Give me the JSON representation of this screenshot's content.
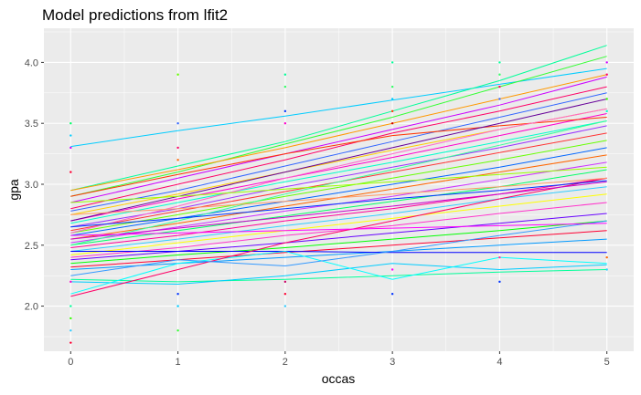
{
  "chart_data": {
    "type": "line",
    "title": "Model predictions from lfit2",
    "xlabel": "occas",
    "ylabel": "gpa",
    "xlim": [
      -0.25,
      5.25
    ],
    "ylim": [
      1.63,
      4.28
    ],
    "x_ticks": [
      0,
      1,
      2,
      3,
      4,
      5
    ],
    "x_tick_labels": [
      "0",
      "1",
      "2",
      "3",
      "4",
      "5"
    ],
    "y_ticks": [
      2.0,
      2.5,
      3.0,
      3.5,
      4.0
    ],
    "y_tick_labels": [
      "2.0",
      "2.5",
      "3.0",
      "3.5",
      "4.0"
    ],
    "grid": true,
    "legend": "none",
    "x": [
      0,
      1,
      2,
      3,
      4,
      5
    ],
    "series": [
      {
        "values": [
          3.31,
          3.44,
          3.56,
          3.69,
          3.82,
          3.95
        ],
        "color": "#00ccff"
      },
      {
        "values": [
          2.95,
          3.15,
          3.35,
          3.6,
          3.85,
          4.14
        ],
        "color": "#00ff99"
      },
      {
        "values": [
          2.9,
          3.1,
          3.33,
          3.55,
          3.8,
          4.05
        ],
        "color": "#33ff33"
      },
      {
        "values": [
          2.95,
          3.12,
          3.3,
          3.5,
          3.7,
          3.9
        ],
        "color": "#ff9900"
      },
      {
        "values": [
          2.85,
          3.05,
          3.25,
          3.45,
          3.65,
          3.88
        ],
        "color": "#cc00ff"
      },
      {
        "values": [
          2.8,
          3.0,
          3.2,
          3.42,
          3.6,
          3.8
        ],
        "color": "#ff0066"
      },
      {
        "values": [
          2.78,
          2.95,
          3.15,
          3.35,
          3.55,
          3.75
        ],
        "color": "#3366ff"
      },
      {
        "values": [
          2.75,
          2.92,
          3.1,
          3.28,
          3.45,
          3.62
        ],
        "color": "#ffcc00"
      },
      {
        "values": [
          2.7,
          2.88,
          3.05,
          3.22,
          3.4,
          3.58
        ],
        "color": "#ff00cc"
      },
      {
        "values": [
          2.68,
          2.85,
          3.02,
          3.18,
          3.35,
          3.52
        ],
        "color": "#00ffcc"
      },
      {
        "values": [
          2.65,
          2.8,
          2.98,
          3.14,
          3.3,
          3.48
        ],
        "color": "#9933ff"
      },
      {
        "values": [
          2.62,
          2.78,
          2.94,
          3.1,
          3.26,
          3.42
        ],
        "color": "#ff3333"
      },
      {
        "values": [
          2.6,
          2.75,
          2.9,
          3.05,
          3.2,
          3.36
        ],
        "color": "#66ff00"
      },
      {
        "values": [
          2.58,
          2.72,
          2.86,
          3.0,
          3.14,
          3.3
        ],
        "color": "#0066ff"
      },
      {
        "values": [
          2.55,
          2.68,
          2.82,
          2.96,
          3.1,
          3.24
        ],
        "color": "#ff6600"
      },
      {
        "values": [
          2.52,
          2.65,
          2.78,
          2.9,
          3.04,
          3.18
        ],
        "color": "#cc33ff"
      },
      {
        "values": [
          2.5,
          2.62,
          2.74,
          2.86,
          2.98,
          3.12
        ],
        "color": "#00ff66"
      },
      {
        "values": [
          2.48,
          2.58,
          2.7,
          2.8,
          2.92,
          3.05
        ],
        "color": "#ff0099"
      },
      {
        "values": [
          2.45,
          2.55,
          2.66,
          2.76,
          2.88,
          2.98
        ],
        "color": "#33ccff"
      },
      {
        "values": [
          2.42,
          2.52,
          2.62,
          2.72,
          2.82,
          2.92
        ],
        "color": "#ffff00"
      },
      {
        "values": [
          2.4,
          2.48,
          2.58,
          2.66,
          2.76,
          2.85
        ],
        "color": "#ff33cc"
      },
      {
        "values": [
          2.38,
          2.45,
          2.52,
          2.6,
          2.68,
          2.76
        ],
        "color": "#6600ff"
      },
      {
        "values": [
          2.35,
          2.42,
          2.48,
          2.55,
          2.62,
          2.7
        ],
        "color": "#00ff00"
      },
      {
        "values": [
          2.32,
          2.38,
          2.44,
          2.5,
          2.56,
          2.62
        ],
        "color": "#ff0033"
      },
      {
        "values": [
          2.3,
          2.35,
          2.4,
          2.45,
          2.5,
          2.55
        ],
        "color": "#0099ff"
      },
      {
        "values": [
          2.45,
          2.45,
          2.45,
          2.44,
          2.44,
          2.44
        ],
        "color": "#0000ff"
      },
      {
        "values": [
          2.22,
          2.2,
          2.22,
          2.25,
          2.28,
          2.3
        ],
        "color": "#00ff99"
      },
      {
        "values": [
          2.2,
          2.18,
          2.25,
          2.35,
          2.3,
          2.34
        ],
        "color": "#00ccff"
      },
      {
        "values": [
          2.1,
          2.35,
          2.45,
          2.22,
          2.4,
          2.35
        ],
        "color": "#00ffff"
      },
      {
        "values": [
          2.08,
          2.3,
          2.52,
          2.7,
          2.88,
          3.05
        ],
        "color": "#ff0066"
      },
      {
        "values": [
          2.25,
          2.38,
          2.33,
          2.45,
          2.58,
          2.7
        ],
        "color": "#3399ff"
      },
      {
        "values": [
          2.9,
          3.08,
          3.25,
          3.4,
          3.48,
          3.55
        ],
        "color": "#ff3300"
      },
      {
        "values": [
          2.7,
          2.9,
          3.1,
          3.3,
          3.5,
          3.7
        ],
        "color": "#660099"
      },
      {
        "values": [
          2.6,
          2.82,
          3.05,
          3.25,
          3.45,
          3.62
        ],
        "color": "#ff66cc"
      },
      {
        "values": [
          2.5,
          2.7,
          2.92,
          3.12,
          3.32,
          3.52
        ],
        "color": "#33ff99"
      },
      {
        "values": [
          2.55,
          2.64,
          2.73,
          2.82,
          2.92,
          3.02
        ],
        "color": "#cc00cc"
      },
      {
        "values": [
          2.65,
          2.72,
          2.8,
          2.88,
          2.95,
          3.03
        ],
        "color": "#0033ff"
      },
      {
        "values": [
          2.75,
          2.8,
          2.86,
          2.92,
          2.98,
          3.05
        ],
        "color": "#ff9966"
      },
      {
        "values": [
          2.85,
          2.9,
          2.96,
          3.02,
          3.08,
          3.14
        ],
        "color": "#99ff00"
      },
      {
        "values": [
          2.58,
          2.6,
          2.62,
          2.64,
          2.66,
          2.68
        ],
        "color": "#ff00ff"
      }
    ],
    "points": [
      {
        "x": 0,
        "y": 3.5,
        "color": "#00ff66"
      },
      {
        "x": 0,
        "y": 3.4,
        "color": "#00ccff"
      },
      {
        "x": 0,
        "y": 3.3,
        "color": "#cc00ff"
      },
      {
        "x": 0,
        "y": 3.1,
        "color": "#ff0033"
      },
      {
        "x": 0,
        "y": 2.2,
        "color": "#ff00cc"
      },
      {
        "x": 0,
        "y": 2.0,
        "color": "#00ff99"
      },
      {
        "x": 0,
        "y": 1.9,
        "color": "#33ff00"
      },
      {
        "x": 0,
        "y": 1.8,
        "color": "#33ccff"
      },
      {
        "x": 0,
        "y": 1.7,
        "color": "#ff0033"
      },
      {
        "x": 1,
        "y": 3.9,
        "color": "#66ff00"
      },
      {
        "x": 1,
        "y": 3.5,
        "color": "#3366ff"
      },
      {
        "x": 1,
        "y": 3.3,
        "color": "#ff0066"
      },
      {
        "x": 1,
        "y": 3.2,
        "color": "#ff6600"
      },
      {
        "x": 1,
        "y": 2.1,
        "color": "#0033ff"
      },
      {
        "x": 1,
        "y": 2.0,
        "color": "#00ccff"
      },
      {
        "x": 1,
        "y": 1.8,
        "color": "#33ff33"
      },
      {
        "x": 2,
        "y": 3.9,
        "color": "#00ff99"
      },
      {
        "x": 2,
        "y": 3.8,
        "color": "#33ff66"
      },
      {
        "x": 2,
        "y": 3.6,
        "color": "#0033ff"
      },
      {
        "x": 2,
        "y": 3.5,
        "color": "#ff00cc"
      },
      {
        "x": 2,
        "y": 2.2,
        "color": "#cc0066"
      },
      {
        "x": 2,
        "y": 2.1,
        "color": "#ff0033"
      },
      {
        "x": 2,
        "y": 2.0,
        "color": "#33ccff"
      },
      {
        "x": 3,
        "y": 4.0,
        "color": "#00ff99"
      },
      {
        "x": 3,
        "y": 3.8,
        "color": "#33ff66"
      },
      {
        "x": 3,
        "y": 3.7,
        "color": "#00ccff"
      },
      {
        "x": 3,
        "y": 3.6,
        "color": "#ff3300"
      },
      {
        "x": 3,
        "y": 3.5,
        "color": "#cc0000"
      },
      {
        "x": 3,
        "y": 2.3,
        "color": "#ff00ff"
      },
      {
        "x": 3,
        "y": 2.1,
        "color": "#0033ff"
      },
      {
        "x": 4,
        "y": 4.0,
        "color": "#00ff99"
      },
      {
        "x": 4,
        "y": 3.9,
        "color": "#33ff66"
      },
      {
        "x": 4,
        "y": 3.8,
        "color": "#ff0066"
      },
      {
        "x": 4,
        "y": 3.7,
        "color": "#3366ff"
      },
      {
        "x": 4,
        "y": 2.4,
        "color": "#ff3399"
      },
      {
        "x": 4,
        "y": 2.2,
        "color": "#0033ff"
      },
      {
        "x": 5,
        "y": 4.0,
        "color": "#cc00ff"
      },
      {
        "x": 5,
        "y": 3.9,
        "color": "#ff0066"
      },
      {
        "x": 5,
        "y": 3.7,
        "color": "#33ff00"
      },
      {
        "x": 5,
        "y": 3.6,
        "color": "#00ffcc"
      },
      {
        "x": 5,
        "y": 2.3,
        "color": "#33ccff"
      },
      {
        "x": 5,
        "y": 2.4,
        "color": "#ff6600"
      }
    ],
    "colors": {
      "panel_background": "#ebebeb",
      "grid_major": "#ffffff",
      "tick_text": "#4d4d4d",
      "tick_mark": "#333333"
    }
  }
}
